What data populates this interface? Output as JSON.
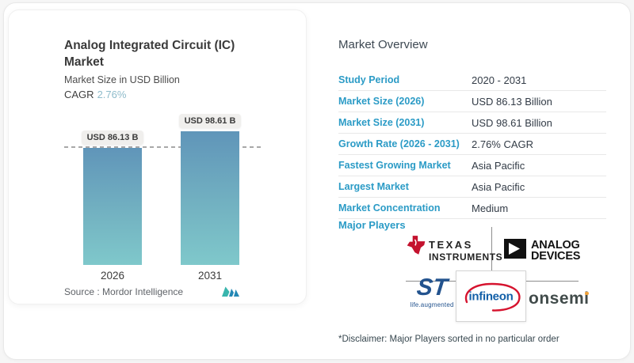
{
  "left_panel": {
    "title_line1": "Analog Integrated Circuit (IC)",
    "title_line2": "Market",
    "subtitle": "Market Size in USD Billion",
    "cagr_label": "CAGR",
    "cagr_value": "2.76%",
    "source_label": "Source :  Mordor Intelligence"
  },
  "chart_data": {
    "type": "bar",
    "categories": [
      "2026",
      "2031"
    ],
    "values": [
      86.13,
      98.61
    ],
    "bar_labels": [
      "USD 86.13 B",
      "USD 98.61 B"
    ],
    "title": "Analog Integrated Circuit (IC) Market",
    "ylabel": "Market Size in USD Billion",
    "cagr": "2.76%",
    "reference_line": 86.13,
    "ylim": [
      0,
      110
    ],
    "grid": false,
    "legend": false
  },
  "overview": {
    "title": "Market Overview",
    "rows": [
      {
        "label": "Study Period",
        "value": "2020 - 2031"
      },
      {
        "label": "Market Size (2026)",
        "value": "USD 86.13 Billion"
      },
      {
        "label": "Market Size (2031)",
        "value": "USD 98.61 Billion"
      },
      {
        "label": "Growth Rate (2026 - 2031)",
        "value": "2.76% CAGR"
      },
      {
        "label": "Fastest Growing Market",
        "value": "Asia Pacific"
      },
      {
        "label": "Largest Market",
        "value": "Asia Pacific"
      },
      {
        "label": "Market Concentration",
        "value": "Medium"
      }
    ]
  },
  "major_players": {
    "label": "Major Players",
    "ti": {
      "line1": "TEXAS",
      "line2": "INSTRUMENTS"
    },
    "adi": {
      "line1": "ANALOG",
      "line2": "DEVICES"
    },
    "st": {
      "glyph": "ST",
      "caption": "life.augmented"
    },
    "infineon": {
      "text": "infineon"
    },
    "onsemi": {
      "text": "onsemi"
    },
    "disclaimer": "*Disclaimer: Major Players sorted in no particular order"
  },
  "colors": {
    "accent_blue": "#2b9bc6",
    "bar_top": "#6095b9",
    "bar_bottom": "#7fc8cb",
    "cagr_value": "#8fbccb",
    "ti_red": "#c4122e",
    "adi_black": "#111111",
    "st_blue": "#23538e",
    "infineon_blue": "#1360a8",
    "infineon_red": "#d6132e",
    "onsemi_gray": "#414b4a",
    "onsemi_dot": "#f1a33a",
    "mordor_teal": "#39b5ad",
    "mordor_blue": "#2488b5"
  }
}
